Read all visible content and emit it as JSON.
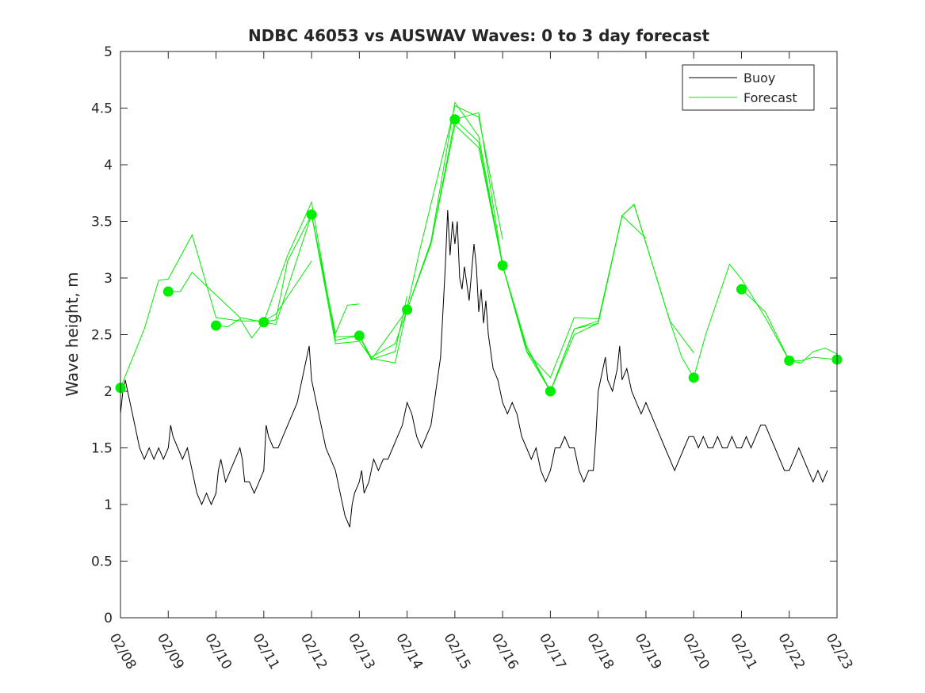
{
  "chart_data": {
    "type": "line",
    "title": "NDBC 46053 vs AUSWAV Waves: 0 to 3 day forecast",
    "xlabel": "",
    "ylabel": "Wave height, m",
    "xlim": [
      0,
      15
    ],
    "ylim": [
      0,
      5
    ],
    "yticks": [
      0,
      0.5,
      1,
      1.5,
      2,
      2.5,
      3,
      3.5,
      4,
      4.5,
      5
    ],
    "yticklabels": [
      "0",
      "0.5",
      "1",
      "1.5",
      "2",
      "2.5",
      "3",
      "3.5",
      "4",
      "4.5",
      "5"
    ],
    "xtick_labels": [
      "02/08",
      "02/09",
      "02/10",
      "02/11",
      "02/12",
      "02/13",
      "02/14",
      "02/15",
      "02/16",
      "02/17",
      "02/18",
      "02/19",
      "02/20",
      "02/21",
      "02/22",
      "02/23"
    ],
    "legend": {
      "placement": "top-right",
      "entries": [
        {
          "label": "Buoy",
          "color": "#000000"
        },
        {
          "label": "Forecast",
          "color": "#00ee00"
        }
      ]
    },
    "colors": {
      "buoy": "#000000",
      "forecast": "#00ee00"
    },
    "buoy": {
      "name": "Buoy",
      "points": [
        [
          0.0,
          1.8
        ],
        [
          0.05,
          2.0
        ],
        [
          0.1,
          2.1
        ],
        [
          0.15,
          2.0
        ],
        [
          0.2,
          1.9
        ],
        [
          0.25,
          1.8
        ],
        [
          0.3,
          1.7
        ],
        [
          0.35,
          1.6
        ],
        [
          0.4,
          1.5
        ],
        [
          0.5,
          1.4
        ],
        [
          0.6,
          1.5
        ],
        [
          0.7,
          1.4
        ],
        [
          0.8,
          1.5
        ],
        [
          0.9,
          1.4
        ],
        [
          1.0,
          1.5
        ],
        [
          1.05,
          1.7
        ],
        [
          1.1,
          1.6
        ],
        [
          1.2,
          1.5
        ],
        [
          1.3,
          1.4
        ],
        [
          1.4,
          1.5
        ],
        [
          1.5,
          1.3
        ],
        [
          1.55,
          1.2
        ],
        [
          1.6,
          1.1
        ],
        [
          1.7,
          1.0
        ],
        [
          1.8,
          1.1
        ],
        [
          1.9,
          1.0
        ],
        [
          2.0,
          1.1
        ],
        [
          2.05,
          1.3
        ],
        [
          2.1,
          1.4
        ],
        [
          2.15,
          1.3
        ],
        [
          2.2,
          1.2
        ],
        [
          2.3,
          1.3
        ],
        [
          2.4,
          1.4
        ],
        [
          2.5,
          1.5
        ],
        [
          2.55,
          1.4
        ],
        [
          2.6,
          1.2
        ],
        [
          2.7,
          1.2
        ],
        [
          2.8,
          1.1
        ],
        [
          2.9,
          1.2
        ],
        [
          3.0,
          1.3
        ],
        [
          3.05,
          1.7
        ],
        [
          3.1,
          1.6
        ],
        [
          3.2,
          1.5
        ],
        [
          3.3,
          1.5
        ],
        [
          3.4,
          1.6
        ],
        [
          3.5,
          1.7
        ],
        [
          3.6,
          1.8
        ],
        [
          3.7,
          1.9
        ],
        [
          3.8,
          2.1
        ],
        [
          3.9,
          2.3
        ],
        [
          3.95,
          2.4
        ],
        [
          4.0,
          2.1
        ],
        [
          4.1,
          1.9
        ],
        [
          4.2,
          1.7
        ],
        [
          4.3,
          1.5
        ],
        [
          4.4,
          1.4
        ],
        [
          4.5,
          1.3
        ],
        [
          4.6,
          1.1
        ],
        [
          4.7,
          0.9
        ],
        [
          4.8,
          0.8
        ],
        [
          4.85,
          1.0
        ],
        [
          4.9,
          1.1
        ],
        [
          5.0,
          1.2
        ],
        [
          5.05,
          1.3
        ],
        [
          5.1,
          1.1
        ],
        [
          5.2,
          1.2
        ],
        [
          5.3,
          1.4
        ],
        [
          5.4,
          1.3
        ],
        [
          5.5,
          1.4
        ],
        [
          5.6,
          1.4
        ],
        [
          5.7,
          1.5
        ],
        [
          5.8,
          1.6
        ],
        [
          5.9,
          1.7
        ],
        [
          6.0,
          1.9
        ],
        [
          6.1,
          1.8
        ],
        [
          6.2,
          1.6
        ],
        [
          6.3,
          1.5
        ],
        [
          6.4,
          1.6
        ],
        [
          6.5,
          1.7
        ],
        [
          6.6,
          2.0
        ],
        [
          6.7,
          2.3
        ],
        [
          6.75,
          2.7
        ],
        [
          6.8,
          3.1
        ],
        [
          6.85,
          3.6
        ],
        [
          6.9,
          3.2
        ],
        [
          6.95,
          3.5
        ],
        [
          7.0,
          3.3
        ],
        [
          7.05,
          3.5
        ],
        [
          7.1,
          3.0
        ],
        [
          7.15,
          2.9
        ],
        [
          7.2,
          3.1
        ],
        [
          7.3,
          2.8
        ],
        [
          7.4,
          3.3
        ],
        [
          7.45,
          3.1
        ],
        [
          7.5,
          2.7
        ],
        [
          7.55,
          2.9
        ],
        [
          7.6,
          2.6
        ],
        [
          7.65,
          2.8
        ],
        [
          7.7,
          2.5
        ],
        [
          7.8,
          2.2
        ],
        [
          7.9,
          2.1
        ],
        [
          8.0,
          1.9
        ],
        [
          8.1,
          1.8
        ],
        [
          8.2,
          1.9
        ],
        [
          8.3,
          1.8
        ],
        [
          8.4,
          1.6
        ],
        [
          8.5,
          1.5
        ],
        [
          8.6,
          1.4
        ],
        [
          8.7,
          1.5
        ],
        [
          8.8,
          1.3
        ],
        [
          8.9,
          1.2
        ],
        [
          9.0,
          1.3
        ],
        [
          9.1,
          1.5
        ],
        [
          9.2,
          1.5
        ],
        [
          9.3,
          1.6
        ],
        [
          9.4,
          1.5
        ],
        [
          9.5,
          1.5
        ],
        [
          9.6,
          1.3
        ],
        [
          9.7,
          1.2
        ],
        [
          9.8,
          1.3
        ],
        [
          9.9,
          1.3
        ],
        [
          9.95,
          1.6
        ],
        [
          10.0,
          2.0
        ],
        [
          10.1,
          2.2
        ],
        [
          10.15,
          2.3
        ],
        [
          10.2,
          2.1
        ],
        [
          10.3,
          2.0
        ],
        [
          10.4,
          2.2
        ],
        [
          10.45,
          2.4
        ],
        [
          10.5,
          2.1
        ],
        [
          10.6,
          2.2
        ],
        [
          10.7,
          2.0
        ],
        [
          10.8,
          1.9
        ],
        [
          10.9,
          1.8
        ],
        [
          11.0,
          1.9
        ],
        [
          11.1,
          1.8
        ],
        [
          11.2,
          1.7
        ],
        [
          11.3,
          1.6
        ],
        [
          11.4,
          1.5
        ],
        [
          11.5,
          1.4
        ],
        [
          11.6,
          1.3
        ],
        [
          11.7,
          1.4
        ],
        [
          11.8,
          1.5
        ],
        [
          11.9,
          1.6
        ],
        [
          12.0,
          1.6
        ],
        [
          12.1,
          1.5
        ],
        [
          12.2,
          1.6
        ],
        [
          12.3,
          1.5
        ],
        [
          12.4,
          1.5
        ],
        [
          12.5,
          1.6
        ],
        [
          12.6,
          1.5
        ],
        [
          12.7,
          1.5
        ],
        [
          12.8,
          1.6
        ],
        [
          12.9,
          1.5
        ],
        [
          13.0,
          1.5
        ],
        [
          13.1,
          1.6
        ],
        [
          13.2,
          1.5
        ],
        [
          13.3,
          1.6
        ],
        [
          13.4,
          1.7
        ],
        [
          13.5,
          1.7
        ],
        [
          13.6,
          1.6
        ],
        [
          13.7,
          1.5
        ],
        [
          13.8,
          1.4
        ],
        [
          13.9,
          1.3
        ],
        [
          14.0,
          1.3
        ],
        [
          14.1,
          1.4
        ],
        [
          14.2,
          1.5
        ],
        [
          14.3,
          1.4
        ],
        [
          14.4,
          1.3
        ],
        [
          14.5,
          1.2
        ],
        [
          14.6,
          1.3
        ],
        [
          14.7,
          1.2
        ],
        [
          14.8,
          1.3
        ]
      ]
    },
    "forecast_runs": [
      {
        "name": "Forecast run 1",
        "points": [
          [
            0.0,
            2.03
          ],
          [
            0.5,
            2.55
          ],
          [
            0.8,
            2.98
          ],
          [
            1.0,
            2.99
          ],
          [
            1.5,
            3.38
          ],
          [
            2.0,
            2.65
          ],
          [
            2.5,
            2.62
          ],
          [
            3.0,
            2.62
          ],
          [
            3.25,
            2.68
          ],
          [
            4.0,
            3.15
          ]
        ]
      },
      {
        "name": "Forecast run 2",
        "points": [
          [
            1.0,
            2.88
          ],
          [
            1.25,
            2.88
          ],
          [
            1.5,
            3.05
          ],
          [
            2.0,
            2.85
          ],
          [
            2.5,
            2.65
          ],
          [
            3.0,
            2.61
          ],
          [
            3.25,
            2.59
          ],
          [
            4.0,
            3.56
          ],
          [
            4.5,
            2.51
          ],
          [
            4.75,
            2.76
          ],
          [
            5.0,
            2.77
          ]
        ]
      },
      {
        "name": "Forecast run 3",
        "points": [
          [
            2.0,
            2.58
          ],
          [
            2.25,
            2.57
          ],
          [
            2.5,
            2.64
          ],
          [
            2.75,
            2.47
          ],
          [
            3.0,
            2.61
          ],
          [
            3.5,
            3.2
          ],
          [
            4.0,
            3.67
          ],
          [
            4.5,
            2.45
          ],
          [
            5.0,
            2.49
          ],
          [
            5.25,
            2.28
          ],
          [
            5.75,
            2.35
          ],
          [
            6.0,
            2.84
          ]
        ]
      },
      {
        "name": "Forecast run 4",
        "points": [
          [
            3.0,
            2.61
          ],
          [
            3.25,
            2.63
          ],
          [
            3.5,
            3.15
          ],
          [
            4.0,
            3.56
          ],
          [
            4.5,
            2.42
          ],
          [
            5.0,
            2.44
          ],
          [
            5.25,
            2.29
          ],
          [
            5.75,
            2.25
          ],
          [
            6.25,
            3.22
          ],
          [
            7.0,
            4.52
          ],
          [
            7.5,
            4.42
          ],
          [
            8.0,
            3.34
          ]
        ]
      },
      {
        "name": "Forecast run 5",
        "points": [
          [
            4.0,
            3.56
          ],
          [
            4.5,
            2.48
          ],
          [
            5.0,
            2.49
          ],
          [
            5.25,
            2.28
          ],
          [
            6.0,
            2.72
          ],
          [
            6.5,
            3.3
          ],
          [
            7.0,
            4.4
          ],
          [
            7.5,
            4.46
          ],
          [
            8.0,
            3.11
          ],
          [
            8.5,
            2.35
          ],
          [
            9.0,
            2.12
          ],
          [
            9.5,
            2.65
          ],
          [
            10.0,
            2.64
          ]
        ]
      },
      {
        "name": "Forecast run 6",
        "points": [
          [
            5.0,
            2.49
          ],
          [
            5.25,
            2.3
          ],
          [
            5.75,
            2.42
          ],
          [
            6.0,
            2.72
          ],
          [
            6.5,
            3.32
          ],
          [
            7.0,
            4.55
          ],
          [
            7.5,
            4.25
          ],
          [
            8.0,
            3.11
          ],
          [
            8.5,
            2.38
          ],
          [
            9.0,
            2.0
          ],
          [
            9.5,
            2.5
          ],
          [
            10.0,
            2.6
          ],
          [
            10.5,
            3.55
          ],
          [
            11.0,
            3.35
          ]
        ]
      },
      {
        "name": "Forecast run 7",
        "points": [
          [
            6.0,
            2.72
          ],
          [
            6.5,
            3.3
          ],
          [
            7.0,
            4.35
          ],
          [
            7.5,
            4.15
          ],
          [
            8.0,
            3.11
          ],
          [
            8.5,
            2.4
          ],
          [
            9.0,
            2.0
          ],
          [
            9.5,
            2.55
          ],
          [
            10.0,
            2.6
          ],
          [
            10.5,
            3.55
          ],
          [
            10.75,
            3.65
          ],
          [
            11.5,
            2.62
          ],
          [
            12.0,
            2.34
          ]
        ]
      },
      {
        "name": "Forecast run 8",
        "points": [
          [
            7.0,
            4.4
          ],
          [
            7.5,
            4.2
          ],
          [
            8.0,
            3.11
          ],
          [
            8.5,
            2.35
          ],
          [
            9.0,
            2.0
          ],
          [
            9.5,
            2.55
          ],
          [
            10.0,
            2.62
          ],
          [
            10.5,
            3.55
          ],
          [
            10.75,
            3.65
          ],
          [
            11.5,
            2.62
          ],
          [
            11.75,
            2.3
          ],
          [
            12.0,
            2.12
          ]
        ]
      },
      {
        "name": "Forecast run 9",
        "points": [
          [
            12.0,
            2.12
          ],
          [
            12.25,
            2.5
          ],
          [
            12.75,
            3.12
          ],
          [
            13.0,
            2.99
          ],
          [
            13.5,
            2.65
          ],
          [
            14.0,
            2.27
          ],
          [
            14.25,
            2.27
          ],
          [
            14.5,
            2.3
          ],
          [
            15.0,
            2.28
          ]
        ]
      },
      {
        "name": "Forecast run 10",
        "points": [
          [
            13.0,
            2.9
          ],
          [
            13.5,
            2.7
          ],
          [
            14.0,
            2.27
          ],
          [
            14.25,
            2.25
          ],
          [
            14.5,
            2.35
          ],
          [
            14.75,
            2.38
          ],
          [
            15.0,
            2.33
          ]
        ]
      }
    ],
    "forecast_markers": {
      "name": "Forecast analysis",
      "points": [
        [
          0,
          2.03
        ],
        [
          1,
          2.88
        ],
        [
          2,
          2.58
        ],
        [
          3,
          2.61
        ],
        [
          4,
          3.56
        ],
        [
          5,
          2.49
        ],
        [
          6,
          2.72
        ],
        [
          7,
          4.4
        ],
        [
          8,
          3.11
        ],
        [
          9,
          2.0
        ],
        [
          12,
          2.12
        ],
        [
          13,
          2.9
        ],
        [
          14,
          2.27
        ],
        [
          15,
          2.28
        ]
      ]
    }
  }
}
